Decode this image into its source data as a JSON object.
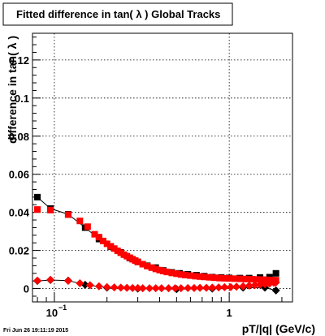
{
  "title": "Fitted difference in tan( λ )  Global Tracks",
  "footer_timestamp": "Fri Jun 26 19:11:19 2015",
  "chart_data": {
    "type": "scatter",
    "title": "Fitted difference in tan( λ )  Global Tracks",
    "xlabel": "pT/|q| (GeV/c)",
    "ylabel": "difference in tan( λ )",
    "x_scale": "log",
    "xlim": [
      0.075,
      2.3
    ],
    "ylim": [
      -0.007,
      0.134
    ],
    "grid": true,
    "x_tick_labels": [
      {
        "value": 0.1,
        "label": "10",
        "exponent": "−1"
      },
      {
        "value": 1,
        "label": "1",
        "exponent": ""
      }
    ],
    "y_tick_labels": [
      {
        "value": 0,
        "label": "0"
      },
      {
        "value": 0.02,
        "label": "0.02"
      },
      {
        "value": 0.04,
        "label": "0.04"
      },
      {
        "value": 0.06,
        "label": "0.06"
      },
      {
        "value": 0.08,
        "label": "0.08"
      },
      {
        "value": 0.1,
        "label": "0.1"
      },
      {
        "value": 0.12,
        "label": "0.12"
      }
    ],
    "colors": {
      "series_red": "#ff0000",
      "series_black": "#000000",
      "fit_line": "#000000"
    },
    "series": [
      {
        "marker": "square",
        "color": "#000000",
        "x": [
          0.08,
          0.095,
          0.12,
          0.15,
          0.18,
          0.21,
          0.24,
          0.27,
          0.3,
          0.34,
          0.38,
          0.42,
          0.47,
          0.52,
          0.58,
          0.65,
          0.72,
          0.8,
          0.9,
          1.0,
          1.15,
          1.3,
          1.5,
          1.7,
          1.85
        ],
        "y": [
          0.048,
          0.042,
          0.039,
          0.032,
          0.026,
          0.022,
          0.019,
          0.016,
          0.014,
          0.012,
          0.011,
          0.0095,
          0.0085,
          0.008,
          0.0075,
          0.007,
          0.0065,
          0.006,
          0.0058,
          0.0056,
          0.0055,
          0.0055,
          0.0058,
          0.006,
          0.008
        ]
      },
      {
        "marker": "square",
        "color": "#ff0000",
        "x": [
          0.08,
          0.095,
          0.12,
          0.14,
          0.155,
          0.17,
          0.18,
          0.19,
          0.2,
          0.21,
          0.22,
          0.23,
          0.24,
          0.25,
          0.26,
          0.27,
          0.28,
          0.29,
          0.3,
          0.32,
          0.34,
          0.36,
          0.38,
          0.4,
          0.42,
          0.44,
          0.47,
          0.5,
          0.53,
          0.56,
          0.6,
          0.64,
          0.68,
          0.72,
          0.77,
          0.82,
          0.88,
          0.94,
          1.0,
          1.08,
          1.16,
          1.25,
          1.35,
          1.45,
          1.55,
          1.65,
          1.75,
          1.85
        ],
        "y": [
          0.0415,
          0.0412,
          0.0388,
          0.0355,
          0.0325,
          0.0285,
          0.027,
          0.025,
          0.0235,
          0.0222,
          0.021,
          0.0198,
          0.0188,
          0.0178,
          0.017,
          0.0162,
          0.0154,
          0.0147,
          0.014,
          0.0128,
          0.0118,
          0.011,
          0.0103,
          0.0097,
          0.0092,
          0.0087,
          0.0082,
          0.0078,
          0.0074,
          0.0071,
          0.0068,
          0.0065,
          0.0063,
          0.0061,
          0.0059,
          0.0057,
          0.0055,
          0.0054,
          0.0053,
          0.0052,
          0.0051,
          0.005,
          0.0049,
          0.0048,
          0.0047,
          0.0046,
          0.0045,
          0.0044
        ]
      },
      {
        "marker": "diamond",
        "color": "#000000",
        "x": [
          0.08,
          0.095,
          0.12,
          0.15,
          0.2,
          0.3,
          0.5,
          0.8,
          1.2,
          1.6,
          1.85
        ],
        "y": [
          0.004,
          0.0045,
          0.0042,
          0.002,
          0.0005,
          0.0,
          -0.0003,
          0.0,
          0.0005,
          0.0005,
          -0.001
        ]
      },
      {
        "marker": "diamond",
        "color": "#ff0000",
        "x": [
          0.08,
          0.095,
          0.12,
          0.14,
          0.16,
          0.18,
          0.2,
          0.22,
          0.24,
          0.26,
          0.28,
          0.3,
          0.32,
          0.35,
          0.38,
          0.41,
          0.45,
          0.49,
          0.53,
          0.58,
          0.63,
          0.68,
          0.74,
          0.8,
          0.87,
          0.94,
          1.02,
          1.1,
          1.2,
          1.3,
          1.4,
          1.5,
          1.6,
          1.7,
          1.8,
          1.85
        ],
        "y": [
          0.0042,
          0.0046,
          0.0041,
          0.0028,
          0.0018,
          0.0012,
          0.0008,
          0.0006,
          0.0005,
          0.0004,
          0.0003,
          0.0003,
          0.0002,
          0.0002,
          0.0002,
          0.0002,
          0.0002,
          0.0002,
          0.0002,
          0.0003,
          0.0003,
          0.0004,
          0.0004,
          0.0005,
          0.0006,
          0.0007,
          0.0008,
          0.001,
          0.0012,
          0.0015,
          0.0018,
          0.002,
          0.0023,
          0.0026,
          0.003,
          0.0032
        ]
      }
    ]
  }
}
